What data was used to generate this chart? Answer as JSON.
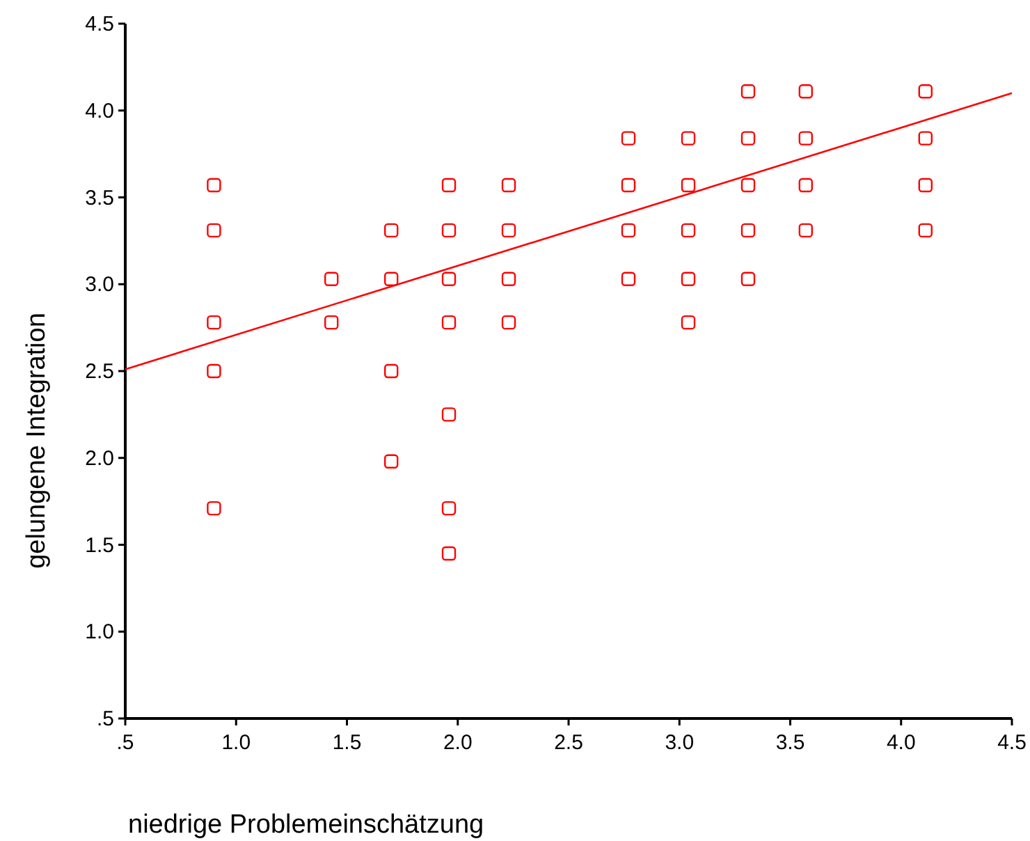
{
  "chart_data": {
    "type": "scatter",
    "xlabel": "niedrige Problemeinschätzung",
    "ylabel": "gelungene Integration",
    "xlim": [
      0.5,
      4.5
    ],
    "ylim": [
      0.5,
      4.5
    ],
    "xticks": [
      {
        "value": 0.5,
        "label": ".5"
      },
      {
        "value": 1,
        "label": "1.0"
      },
      {
        "value": 1.5,
        "label": "1.5"
      },
      {
        "value": 2,
        "label": "2.0"
      },
      {
        "value": 2.5,
        "label": "2.5"
      },
      {
        "value": 3,
        "label": "3.0"
      },
      {
        "value": 3.5,
        "label": "3.5"
      },
      {
        "value": 4,
        "label": "4.0"
      },
      {
        "value": 4.5,
        "label": "4.5"
      }
    ],
    "yticks": [
      {
        "value": 0.5,
        "label": ".5"
      },
      {
        "value": 1,
        "label": "1.0"
      },
      {
        "value": 1.5,
        "label": "1.5"
      },
      {
        "value": 2,
        "label": "2.0"
      },
      {
        "value": 2.5,
        "label": "2.5"
      },
      {
        "value": 3,
        "label": "3.0"
      },
      {
        "value": 3.5,
        "label": "3.5"
      },
      {
        "value": 4,
        "label": "4.0"
      },
      {
        "value": 4.5,
        "label": "4.5"
      }
    ],
    "marker": "square",
    "grid": false,
    "series": [
      {
        "color": "#ff0000",
        "x": [
          0.9,
          0.9,
          0.9,
          0.9,
          0.9,
          1.43,
          1.43,
          1.7,
          1.7,
          1.7,
          1.7,
          1.96,
          1.96,
          1.96,
          1.96,
          1.96,
          1.96,
          1.96,
          2.23,
          2.23,
          2.23,
          2.23,
          2.77,
          2.77,
          2.77,
          2.77,
          3.04,
          3.04,
          3.04,
          3.04,
          3.04,
          3.31,
          3.31,
          3.31,
          3.31,
          3.31,
          3.57,
          3.57,
          3.57,
          3.57,
          4.11,
          4.11,
          4.11,
          4.11
        ],
        "values": [
          3.57,
          3.31,
          2.78,
          2.5,
          1.71,
          3.03,
          2.78,
          3.31,
          3.03,
          2.5,
          1.98,
          3.57,
          3.31,
          3.03,
          2.78,
          2.25,
          1.71,
          1.45,
          3.57,
          3.31,
          3.03,
          2.78,
          3.84,
          3.57,
          3.31,
          3.03,
          3.84,
          3.57,
          3.31,
          3.03,
          2.78,
          4.11,
          3.84,
          3.57,
          3.31,
          3.03,
          4.11,
          3.84,
          3.57,
          3.31,
          4.11,
          3.84,
          3.57,
          3.31
        ]
      },
      {
        "type": "line",
        "marker": "none",
        "color": "#ff0000",
        "x": [
          0.5,
          4.5
        ],
        "values": [
          2.51,
          4.1
        ]
      }
    ]
  }
}
